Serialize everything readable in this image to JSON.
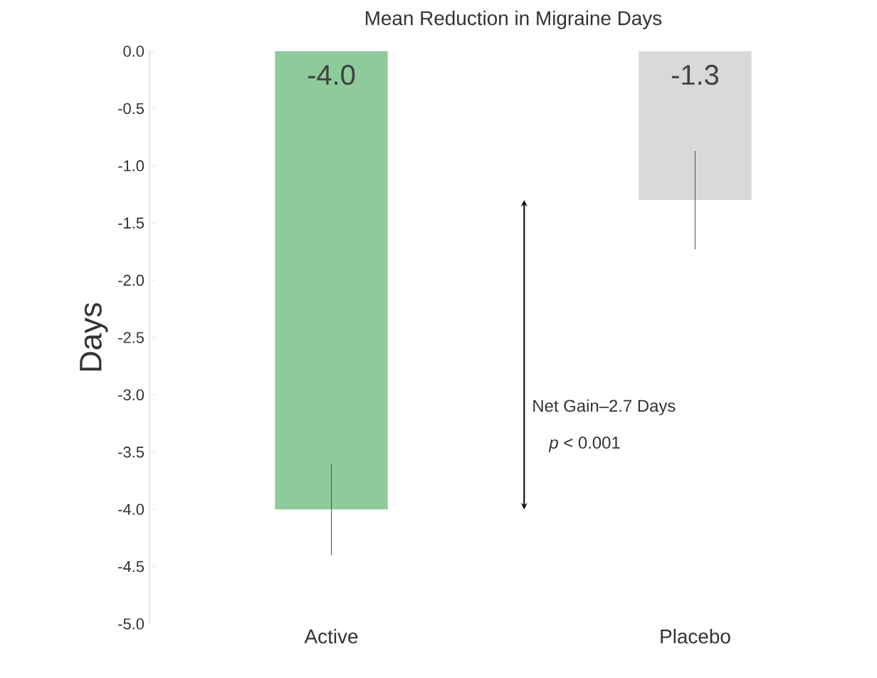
{
  "chart_data": {
    "type": "bar",
    "title": "Mean Reduction  in Migraine Days",
    "ylabel": "Days",
    "categories": [
      "Active",
      "Placebo"
    ],
    "values": [
      -4.0,
      -1.3
    ],
    "colors": [
      "#8fca9a",
      "#d9d9d9"
    ],
    "value_labels": [
      "-4.0",
      "-1.3"
    ],
    "errors": [
      0.4,
      0.43
    ],
    "ylim": [
      -5.0,
      0.0
    ],
    "yticks": [
      {
        "value": 0,
        "label": "0.0"
      },
      {
        "value": -0.5,
        "label": "-0.5"
      },
      {
        "value": -1,
        "label": "-1.0"
      },
      {
        "value": -1.5,
        "label": "-1.5"
      },
      {
        "value": -2,
        "label": "-2.0"
      },
      {
        "value": -2.5,
        "label": "-2.5"
      },
      {
        "value": -3,
        "label": "-3.0"
      },
      {
        "value": -3.5,
        "label": "-3.5"
      },
      {
        "value": -4,
        "label": "-4.0"
      },
      {
        "value": -4.5,
        "label": "-4.5"
      },
      {
        "value": -5,
        "label": "-5.0"
      }
    ],
    "annotations": [
      "Net Gain–2.7 Days",
      "*p* < 0.001"
    ],
    "grid": false
  }
}
